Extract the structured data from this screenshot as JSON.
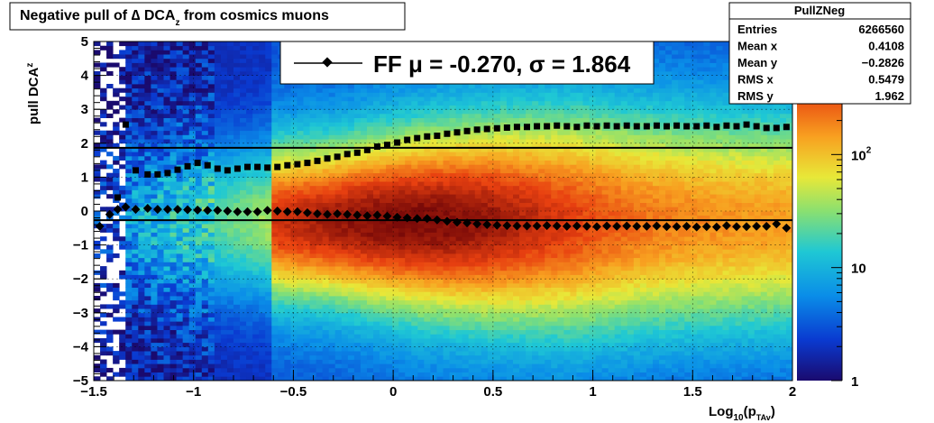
{
  "title": {
    "main": "Negative pull of ",
    "delta": "∆",
    "rest": " DCA",
    "sub": "z",
    "tail": " from cosmics muons"
  },
  "ylabel": {
    "main": "pull DCA",
    "sub": "z"
  },
  "xlabel": {
    "main": "Log",
    "sub1": "10",
    "mid": "(p",
    "sub2": "TAv",
    "end": ")"
  },
  "legend": {
    "text": "FF μ = -0.270, σ =   1.864"
  },
  "stats": {
    "title": "PullZNeg",
    "rows": [
      {
        "label": "Entries",
        "value": "6266560"
      },
      {
        "label": "Mean x",
        "value": "0.4108"
      },
      {
        "label": "Mean y",
        "value": "−0.2826"
      },
      {
        "label": "RMS x",
        "value": "0.5479"
      },
      {
        "label": "RMS y",
        "value": "1.962"
      }
    ]
  },
  "palette": {
    "ticks": [
      {
        "label": "1",
        "value": 1
      },
      {
        "label": "10",
        "value": 10
      },
      {
        "label": "10",
        "sup": "2",
        "value": 100
      }
    ],
    "range": [
      1,
      1000
    ],
    "scale": "log"
  },
  "colors": {
    "frame": "#000000",
    "marker": "#000000",
    "fitline": "#000000"
  },
  "chart_data": {
    "type": "heatmap",
    "xlim": [
      -1.5,
      2
    ],
    "ylim": [
      -5,
      5
    ],
    "x_ticks": [
      {
        "label": "−1.5",
        "value": -1.5
      },
      {
        "label": "−1",
        "value": -1
      },
      {
        "label": "−0.5",
        "value": -0.5
      },
      {
        "label": "0",
        "value": 0
      },
      {
        "label": "0.5",
        "value": 0.5
      },
      {
        "label": "1",
        "value": 1
      },
      {
        "label": "1.5",
        "value": 1.5
      },
      {
        "label": "2",
        "value": 2
      }
    ],
    "y_ticks": [
      {
        "label": "−5",
        "value": -5
      },
      {
        "label": "−4",
        "value": -4
      },
      {
        "label": "−3",
        "value": -3
      },
      {
        "label": "−2",
        "value": -2
      },
      {
        "label": "−1",
        "value": -1
      },
      {
        "label": "0",
        "value": 0
      },
      {
        "label": "1",
        "value": 1
      },
      {
        "label": "2",
        "value": 2
      },
      {
        "label": "3",
        "value": 3
      },
      {
        "label": "4",
        "value": 4
      },
      {
        "label": "5",
        "value": 5
      }
    ],
    "grid": true,
    "z_scale": "log",
    "mean_points": {
      "x": [
        -1.47,
        -1.42,
        -1.38,
        -1.34,
        -1.29,
        -1.23,
        -1.18,
        -1.13,
        -1.08,
        -1.03,
        -0.98,
        -0.93,
        -0.88,
        -0.83,
        -0.78,
        -0.73,
        -0.68,
        -0.63,
        -0.58,
        -0.53,
        -0.48,
        -0.43,
        -0.38,
        -0.33,
        -0.28,
        -0.23,
        -0.18,
        -0.13,
        -0.08,
        -0.03,
        0.02,
        0.07,
        0.12,
        0.17,
        0.22,
        0.27,
        0.32,
        0.37,
        0.42,
        0.47,
        0.52,
        0.57,
        0.62,
        0.67,
        0.72,
        0.77,
        0.82,
        0.87,
        0.92,
        0.97,
        1.02,
        1.07,
        1.12,
        1.17,
        1.22,
        1.27,
        1.32,
        1.37,
        1.42,
        1.47,
        1.52,
        1.57,
        1.62,
        1.67,
        1.72,
        1.77,
        1.82,
        1.87,
        1.92,
        1.97
      ],
      "y": [
        -0.45,
        -0.1,
        0.05,
        0.12,
        0.05,
        0.08,
        0.05,
        0.05,
        0.05,
        0.04,
        0.03,
        0.02,
        0.02,
        0.0,
        -0.02,
        -0.02,
        -0.02,
        0.02,
        0.0,
        -0.02,
        -0.02,
        -0.05,
        -0.08,
        -0.1,
        -0.08,
        -0.1,
        -0.12,
        -0.14,
        -0.12,
        -0.15,
        -0.18,
        -0.2,
        -0.22,
        -0.22,
        -0.26,
        -0.3,
        -0.33,
        -0.35,
        -0.38,
        -0.4,
        -0.42,
        -0.43,
        -0.44,
        -0.44,
        -0.44,
        -0.43,
        -0.44,
        -0.45,
        -0.44,
        -0.45,
        -0.46,
        -0.44,
        -0.45,
        -0.44,
        -0.45,
        -0.45,
        -0.44,
        -0.46,
        -0.46,
        -0.45,
        -0.47,
        -0.46,
        -0.47,
        -0.43,
        -0.46,
        -0.46,
        -0.45,
        -0.45,
        -0.38,
        -0.5
      ]
    },
    "rms_points": {
      "x": [
        -1.38,
        -1.34,
        -1.29,
        -1.23,
        -1.18,
        -1.13,
        -1.08,
        -1.03,
        -0.98,
        -0.93,
        -0.88,
        -0.83,
        -0.78,
        -0.73,
        -0.68,
        -0.63,
        -0.58,
        -0.53,
        -0.48,
        -0.43,
        -0.38,
        -0.33,
        -0.28,
        -0.23,
        -0.18,
        -0.13,
        -0.08,
        -0.03,
        0.02,
        0.07,
        0.12,
        0.17,
        0.22,
        0.27,
        0.32,
        0.37,
        0.42,
        0.47,
        0.52,
        0.57,
        0.62,
        0.67,
        0.72,
        0.77,
        0.82,
        0.87,
        0.92,
        0.97,
        1.02,
        1.07,
        1.12,
        1.17,
        1.22,
        1.27,
        1.32,
        1.37,
        1.42,
        1.47,
        1.52,
        1.57,
        1.62,
        1.67,
        1.72,
        1.77,
        1.82,
        1.87,
        1.92,
        1.97
      ],
      "y": [
        0.4,
        2.55,
        1.2,
        1.08,
        1.08,
        1.12,
        1.22,
        1.32,
        1.42,
        1.35,
        1.25,
        1.2,
        1.25,
        1.3,
        1.3,
        1.28,
        1.3,
        1.35,
        1.38,
        1.42,
        1.48,
        1.55,
        1.6,
        1.68,
        1.72,
        1.8,
        1.9,
        1.95,
        2.02,
        2.1,
        2.15,
        2.2,
        2.22,
        2.28,
        2.32,
        2.36,
        2.4,
        2.42,
        2.44,
        2.46,
        2.48,
        2.48,
        2.5,
        2.5,
        2.52,
        2.5,
        2.48,
        2.52,
        2.5,
        2.52,
        2.5,
        2.52,
        2.5,
        2.5,
        2.52,
        2.5,
        2.52,
        2.5,
        2.5,
        2.52,
        2.48,
        2.52,
        2.5,
        2.55,
        2.5,
        2.45,
        2.45,
        2.48
      ]
    },
    "fit_lines": {
      "mu": -0.27,
      "sigma": 1.864,
      "x_range": [
        -1.5,
        2
      ]
    }
  }
}
